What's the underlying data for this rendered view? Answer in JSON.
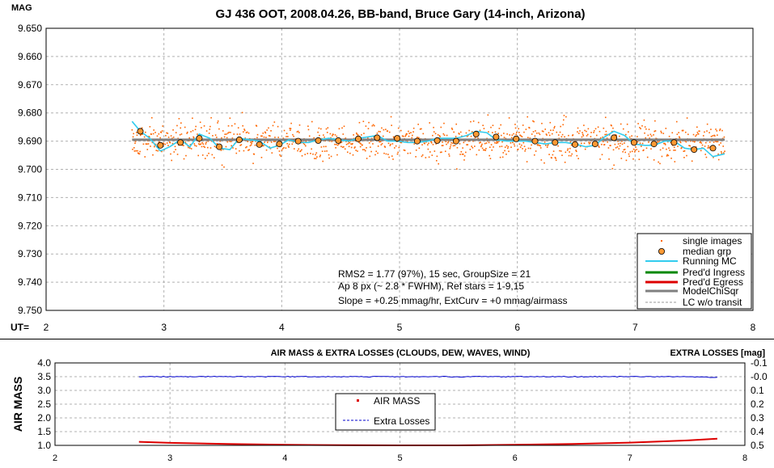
{
  "chart_data": [
    {
      "type": "scatter",
      "title": "GJ 436 OOT, 2008.04.26, BB-band, Bruce Gary (14-inch, Arizona)",
      "ylabel": "MAG",
      "xlabel": "UT=",
      "xlim": [
        2,
        8
      ],
      "ylim": [
        9.75,
        9.65
      ],
      "y_inverted": true,
      "grid": true,
      "xticks": [
        "2",
        "3",
        "4",
        "5",
        "6",
        "7",
        "8"
      ],
      "yticks": [
        "9.650",
        "9.660",
        "9.670",
        "9.680",
        "9.690",
        "9.700",
        "9.710",
        "9.720",
        "9.730",
        "9.740",
        "9.750"
      ],
      "legend_position": "bottom-right",
      "legend": [
        {
          "label": "single images",
          "color": "#ff6600",
          "style": "dot"
        },
        {
          "label": "median grp",
          "color": "#ff9933",
          "style": "circle"
        },
        {
          "label": "Running MC",
          "color": "#33ccee",
          "style": "line"
        },
        {
          "label": "Pred'd Ingress",
          "color": "#008800",
          "style": "thick-line"
        },
        {
          "label": "Pred'd Egress",
          "color": "#dd0000",
          "style": "thick-line"
        },
        {
          "label": "ModelChiSqr",
          "color": "#808080",
          "style": "thick-line"
        },
        {
          "label": "LC w/o transit",
          "color": "#999999",
          "style": "dashed"
        }
      ],
      "annotations": [
        "RMS2 = 1.77 (97%), 15 sec, GroupSize = 21",
        "Ap 8 px (~ 2.8 * FWHM), Ref stars = 1-9,15",
        "Slope = +0.25 mmag/hr, ExtCurv = +0 mmag/airmass"
      ],
      "model_level": 9.6895,
      "model_x_range": [
        2.73,
        7.76
      ],
      "single_images": {
        "count": 1200,
        "x_range": [
          2.73,
          7.76
        ],
        "mean": 9.69,
        "scatter": 0.0032
      },
      "median_grp": {
        "x": [
          2.8,
          2.97,
          3.14,
          3.3,
          3.47,
          3.64,
          3.81,
          3.98,
          4.14,
          4.31,
          4.48,
          4.65,
          4.81,
          4.98,
          5.15,
          5.32,
          5.48,
          5.65,
          5.82,
          5.99,
          6.15,
          6.32,
          6.49,
          6.66,
          6.82,
          6.99,
          7.16,
          7.33,
          7.5,
          7.66
        ],
        "y": [
          9.6865,
          9.6915,
          9.6905,
          9.689,
          9.692,
          9.6895,
          9.6912,
          9.691,
          9.69,
          9.6898,
          9.6898,
          9.6892,
          9.6888,
          9.689,
          9.69,
          9.6898,
          9.69,
          9.6875,
          9.6885,
          9.6892,
          9.69,
          9.6905,
          9.6912,
          9.691,
          9.6888,
          9.6905,
          9.691,
          9.6905,
          9.693,
          9.6925
        ]
      },
      "running_mc": {
        "x": [
          2.73,
          2.8,
          2.88,
          2.97,
          3.05,
          3.14,
          3.22,
          3.3,
          3.39,
          3.47,
          3.56,
          3.64,
          3.73,
          3.81,
          3.9,
          3.98,
          4.06,
          4.14,
          4.23,
          4.31,
          4.4,
          4.48,
          4.57,
          4.65,
          4.73,
          4.81,
          4.9,
          4.98,
          5.07,
          5.15,
          5.24,
          5.32,
          5.4,
          5.48,
          5.57,
          5.65,
          5.74,
          5.82,
          5.91,
          5.99,
          6.07,
          6.15,
          6.24,
          6.32,
          6.41,
          6.49,
          6.58,
          6.66,
          6.74,
          6.82,
          6.91,
          6.99,
          7.08,
          7.16,
          7.25,
          7.33,
          7.42,
          7.5,
          7.58,
          7.66,
          7.76
        ],
        "y": [
          9.683,
          9.6865,
          9.689,
          9.6935,
          9.692,
          9.6895,
          9.692,
          9.6875,
          9.689,
          9.6925,
          9.693,
          9.689,
          9.6895,
          9.69,
          9.6925,
          9.6915,
          9.6895,
          9.6905,
          9.6905,
          9.6895,
          9.689,
          9.6895,
          9.69,
          9.689,
          9.6885,
          9.688,
          9.69,
          9.69,
          9.6905,
          9.6905,
          9.69,
          9.689,
          9.689,
          9.689,
          9.688,
          9.6865,
          9.687,
          9.6895,
          9.69,
          9.69,
          9.69,
          9.6905,
          9.691,
          9.6905,
          9.6905,
          9.691,
          9.692,
          9.6915,
          9.6885,
          9.6865,
          9.688,
          9.691,
          9.6915,
          9.6915,
          9.69,
          9.69,
          9.6925,
          9.693,
          9.6925,
          9.6955,
          9.6945
        ]
      }
    },
    {
      "type": "line",
      "title": "AIR MASS & EXTRA LOSSES (CLOUDS, DEW, WAVES, WIND)",
      "ylabel": "AIR MASS",
      "y2label": "EXTRA LOSSES [mag]",
      "xlim": [
        2,
        8
      ],
      "ylim": [
        1.0,
        4.0
      ],
      "y2lim": [
        -0.1,
        0.5
      ],
      "y2_inverted": true,
      "grid": true,
      "xticks": [
        "2",
        "3",
        "4",
        "5",
        "6",
        "7",
        "8"
      ],
      "yticks": [
        "1.0",
        "1.5",
        "2.0",
        "2.5",
        "3.0",
        "3.5",
        "4.0"
      ],
      "y2ticks": [
        "-0.1",
        "-0.0",
        "0.1",
        "0.2",
        "0.3",
        "0.4",
        "0.5"
      ],
      "legend_position": "center-left",
      "series": [
        {
          "name": "AIR MASS",
          "color": "#dd0000",
          "x": [
            2.73,
            3.0,
            3.5,
            4.0,
            4.5,
            5.0,
            5.5,
            6.0,
            6.5,
            7.0,
            7.5,
            7.76
          ],
          "y": [
            1.13,
            1.09,
            1.05,
            1.02,
            1.01,
            1.0,
            1.0,
            1.02,
            1.05,
            1.1,
            1.18,
            1.24
          ]
        },
        {
          "name": "Extra Losses",
          "color": "#0000cc",
          "x": [
            2.73,
            7.0,
            7.5,
            7.76
          ],
          "y": [
            0.0,
            0.0,
            0.0,
            0.005
          ]
        }
      ]
    }
  ]
}
